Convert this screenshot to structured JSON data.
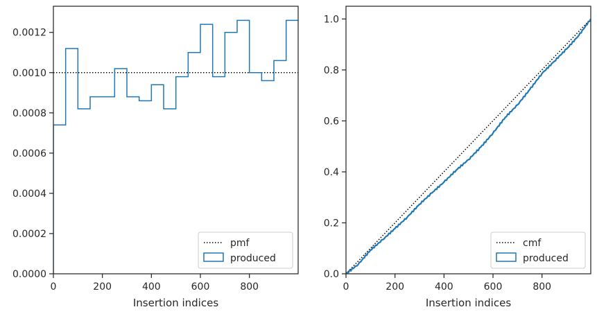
{
  "colors": {
    "produced": "#1f77b4",
    "reference": "#000000",
    "axes": "#262626"
  },
  "chart_data": [
    {
      "type": "histogram",
      "xlabel": "Insertion indices",
      "ylabel": "",
      "xlim": [
        0,
        999
      ],
      "ylim": [
        0,
        0.00133
      ],
      "x_ticks": [
        0,
        200,
        400,
        600,
        800
      ],
      "x_tick_labels": [
        "0",
        "200",
        "400",
        "600",
        "800"
      ],
      "y_ticks": [
        0,
        0.0002,
        0.0004,
        0.0006,
        0.0008,
        0.001,
        0.0012
      ],
      "y_tick_labels": [
        "0.0000",
        "0.0002",
        "0.0004",
        "0.0006",
        "0.0008",
        "0.0010",
        "0.0012"
      ],
      "legend_position": "lower right",
      "legend": [
        {
          "label": "pmf",
          "style": "dotted-line"
        },
        {
          "label": "produced",
          "style": "step-patch"
        }
      ],
      "bin_edges": [
        0,
        50,
        100,
        150,
        200,
        250,
        300,
        350,
        400,
        450,
        500,
        550,
        600,
        650,
        700,
        750,
        800,
        850,
        900,
        950,
        1000
      ],
      "series": [
        {
          "name": "produced",
          "values": [
            0.00074,
            0.00112,
            0.00082,
            0.00088,
            0.00088,
            0.00102,
            0.00088,
            0.00086,
            0.00094,
            0.00082,
            0.00098,
            0.0011,
            0.00124,
            0.00098,
            0.0012,
            0.00126,
            0.001,
            0.00096,
            0.00106,
            0.00126
          ]
        },
        {
          "name": "pmf",
          "values": [
            0.001,
            0.001
          ]
        }
      ]
    },
    {
      "type": "line",
      "xlabel": "Insertion indices",
      "ylabel": "",
      "xlim": [
        0,
        999
      ],
      "ylim": [
        0,
        1.05
      ],
      "x_ticks": [
        0,
        200,
        400,
        600,
        800
      ],
      "x_tick_labels": [
        "0",
        "200",
        "400",
        "600",
        "800"
      ],
      "y_ticks": [
        0,
        0.2,
        0.4,
        0.6,
        0.8,
        1.0
      ],
      "y_tick_labels": [
        "0.0",
        "0.2",
        "0.4",
        "0.6",
        "0.8",
        "1.0"
      ],
      "legend_position": "lower right",
      "legend": [
        {
          "label": "cmf",
          "style": "dotted-line"
        },
        {
          "label": "produced",
          "style": "step-patch"
        }
      ],
      "series": [
        {
          "name": "cmf",
          "x": [
            0,
            999
          ],
          "y": [
            0,
            1.0
          ]
        },
        {
          "name": "produced",
          "x": [
            0,
            50,
            100,
            150,
            200,
            250,
            300,
            350,
            400,
            450,
            500,
            550,
            600,
            650,
            700,
            750,
            800,
            850,
            900,
            950,
            999
          ],
          "y": [
            0,
            0.037,
            0.093,
            0.134,
            0.178,
            0.222,
            0.273,
            0.317,
            0.36,
            0.407,
            0.448,
            0.497,
            0.552,
            0.614,
            0.663,
            0.723,
            0.786,
            0.834,
            0.882,
            0.935,
            1.0
          ]
        }
      ]
    }
  ]
}
